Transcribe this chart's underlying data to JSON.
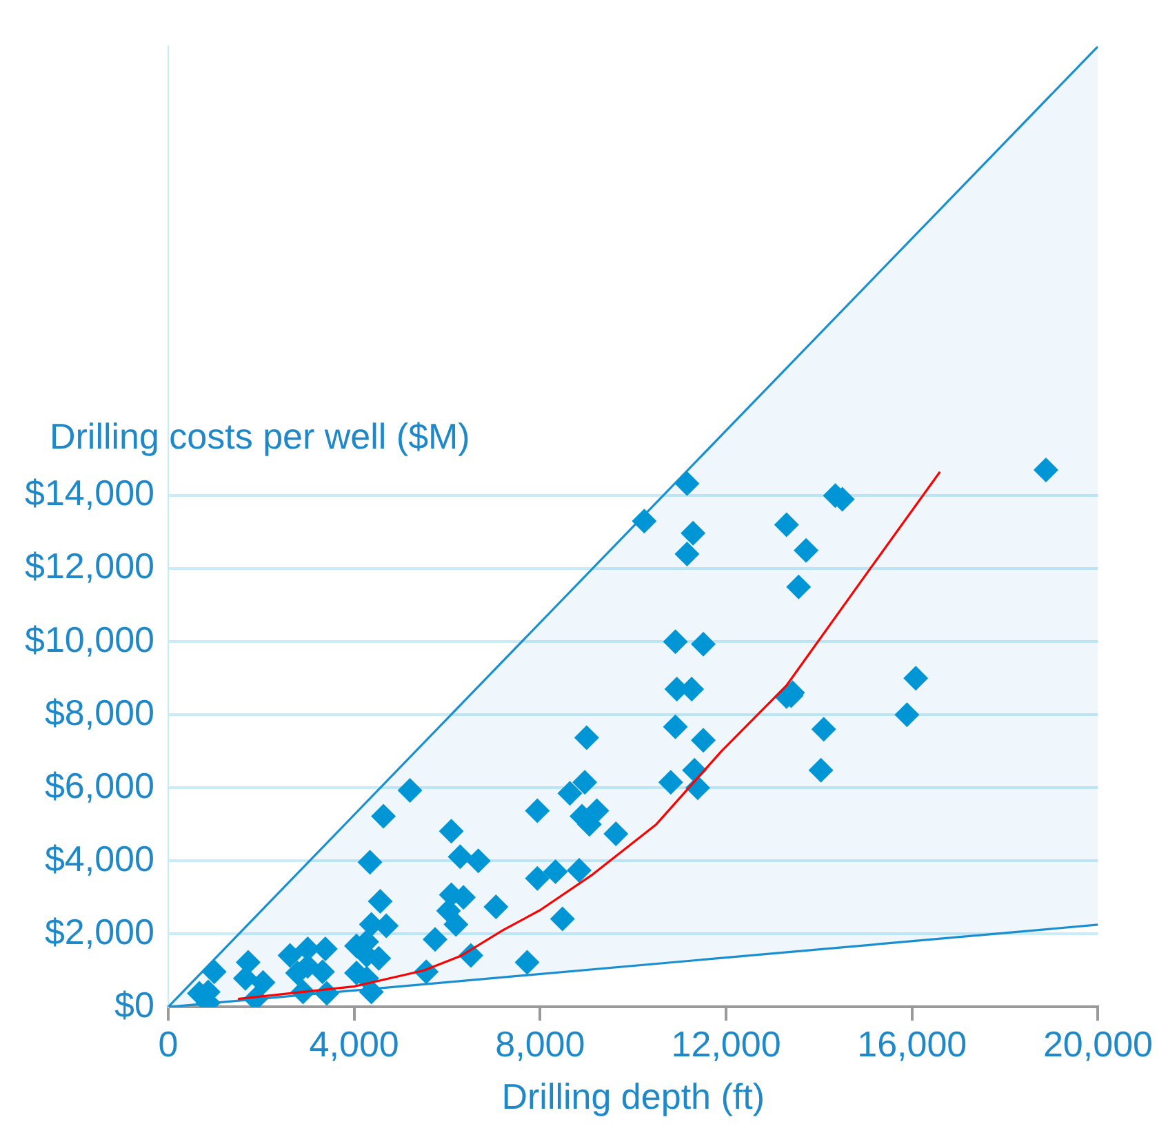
{
  "chart_data": {
    "type": "scatter",
    "xlabel": "Drilling depth (ft)",
    "ylabel": "Drilling costs per well ($M)",
    "xlim": [
      0,
      20000
    ],
    "xticks": [
      0,
      {
        "value": 4000,
        "label": "4,000"
      },
      {
        "value": 8000,
        "label": "8,000"
      },
      {
        "value": 12000,
        "label": "12,000"
      },
      {
        "value": 16000,
        "label": "16,000"
      },
      {
        "value": 20000,
        "label": "20,000"
      }
    ],
    "ylim": [
      0,
      26300
    ],
    "yticks": [
      {
        "value": 0,
        "label": "$0"
      },
      {
        "value": 2000,
        "label": "$2,000"
      },
      {
        "value": 4000,
        "label": "$4,000"
      },
      {
        "value": 6000,
        "label": "$6,000"
      },
      {
        "value": 8000,
        "label": "$8,000"
      },
      {
        "value": 10000,
        "label": "$10,000"
      },
      {
        "value": 12000,
        "label": "$12,000"
      },
      {
        "value": 14000,
        "label": "$14,000"
      }
    ],
    "grid": "y",
    "legend": false,
    "marker": "diamond",
    "series": [
      {
        "type": "line",
        "marker": "none",
        "color": "#1a8fd0",
        "x": [
          0,
          20000
        ],
        "values": [
          0,
          2250
        ]
      },
      {
        "type": "area",
        "marker": "none",
        "color": "#1a8fd0",
        "x": [
          0,
          20000
        ],
        "values": [
          0,
          26300
        ]
      },
      {
        "type": "scatter",
        "color": "#0096d6",
        "x": [
          18880,
          16080,
          15890,
          14100,
          14040,
          13400,
          13300,
          13430,
          13300,
          13720,
          13560,
          14350,
          14500,
          11160,
          10240,
          11290,
          11160,
          10910,
          11510,
          10940,
          11260,
          10910,
          11510,
          10810,
          11320,
          11390,
          5200,
          4630,
          4340,
          6090,
          6280,
          6670,
          6090,
          6350,
          6030,
          6190,
          5740,
          6510,
          7050,
          7940,
          8640,
          8960,
          9000,
          8900,
          9220,
          9060,
          9630,
          7940,
          8330,
          8840,
          8480,
          7720,
          4560,
          4370,
          4690,
          4270,
          4050,
          4270,
          4530,
          5550,
          860,
          670,
          990,
          860,
          1720,
          1660,
          2040,
          1880,
          2620,
          3000,
          3380,
          2780,
          3320,
          3000,
          2900,
          3410,
          4050,
          4270,
          4370
        ],
        "values": [
          14700,
          9000,
          8000,
          7600,
          6480,
          8520,
          8500,
          8600,
          13200,
          12500,
          11500,
          14000,
          13900,
          14330,
          13300,
          12970,
          12400,
          10000,
          9930,
          8700,
          8700,
          7670,
          7300,
          6150,
          6480,
          6000,
          5930,
          5220,
          3960,
          4810,
          4110,
          4000,
          3070,
          3000,
          2630,
          2260,
          1850,
          1410,
          2740,
          5370,
          5850,
          6150,
          7370,
          5220,
          5370,
          5000,
          4740,
          3520,
          3700,
          3740,
          2410,
          1220,
          2890,
          2260,
          2220,
          1780,
          1670,
          1410,
          1330,
          960,
          410,
          370,
          960,
          110,
          1220,
          780,
          670,
          220,
          1410,
          1590,
          1590,
          930,
          960,
          1110,
          410,
          370,
          930,
          780,
          410
        ]
      },
      {
        "type": "line",
        "marker": "none",
        "color": "#ff0000",
        "x": [
          1500,
          4000,
          5500,
          6300,
          7200,
          8000,
          9100,
          10500,
          11900,
          13300,
          15100,
          16600
        ],
        "values": [
          220,
          560,
          1000,
          1400,
          2100,
          2650,
          3600,
          5000,
          7000,
          8800,
          12000,
          14650
        ]
      }
    ]
  }
}
